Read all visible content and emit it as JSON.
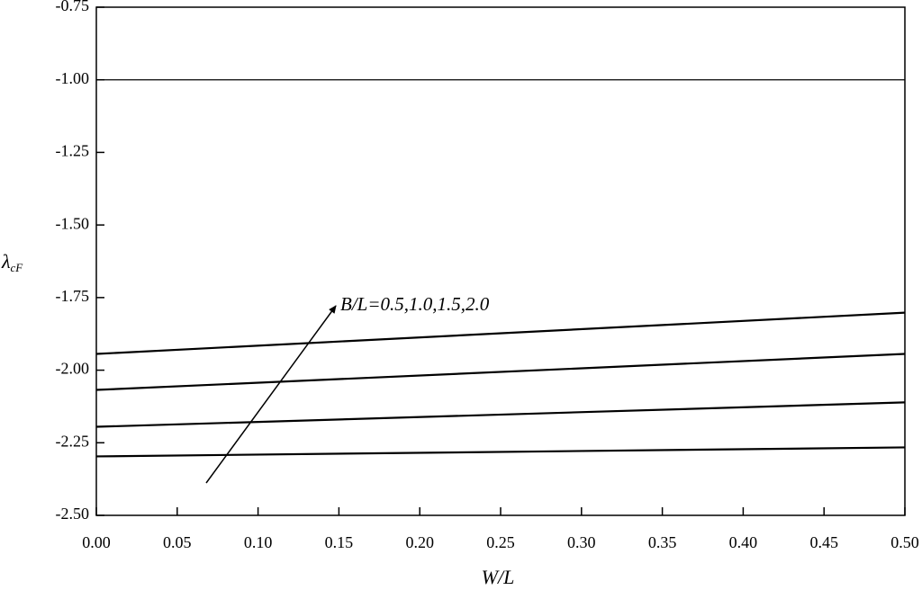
{
  "chart_data": {
    "type": "line",
    "x_label": "W/L",
    "y_label": {
      "main": "λ",
      "sub": "cF"
    },
    "annotation": "B/L=0.5,1.0,1.5,2.0",
    "xlim": [
      0,
      0.5
    ],
    "ylim": [
      -2.5,
      -0.75
    ],
    "xticks": [
      {
        "value": 0,
        "label": "0.00"
      },
      {
        "value": 0.05,
        "label": "0.05"
      },
      {
        "value": 0.1,
        "label": "0.10"
      },
      {
        "value": 0.15,
        "label": "0.15"
      },
      {
        "value": 0.2,
        "label": "0.20"
      },
      {
        "value": 0.25,
        "label": "0.25"
      },
      {
        "value": 0.3,
        "label": "0.30"
      },
      {
        "value": 0.35,
        "label": "0.35"
      },
      {
        "value": 0.4,
        "label": "0.40"
      },
      {
        "value": 0.45,
        "label": "0.45"
      },
      {
        "value": 0.5,
        "label": "0.50"
      }
    ],
    "yticks": [
      {
        "value": -2.5,
        "label": "-2.50"
      },
      -2.25,
      {
        "value": -2,
        "label": "-2.00"
      },
      -1.75,
      {
        "value": -1.5,
        "label": "-1.50"
      },
      -1.25,
      {
        "value": -1,
        "label": "-1.00"
      },
      -0.75
    ],
    "x": [
      0,
      0.5
    ],
    "series": [
      {
        "color": "#000000",
        "values": [
          -1.0,
          -1.0
        ]
      },
      {
        "color": "#000000",
        "values": [
          -1.944,
          -1.802
        ]
      },
      {
        "color": "#000000",
        "values": [
          -2.068,
          -1.944
        ]
      },
      {
        "color": "#000000",
        "values": [
          -2.195,
          -2.111
        ]
      },
      {
        "color": "#000000",
        "values": [
          -2.297,
          -2.266
        ]
      }
    ]
  }
}
